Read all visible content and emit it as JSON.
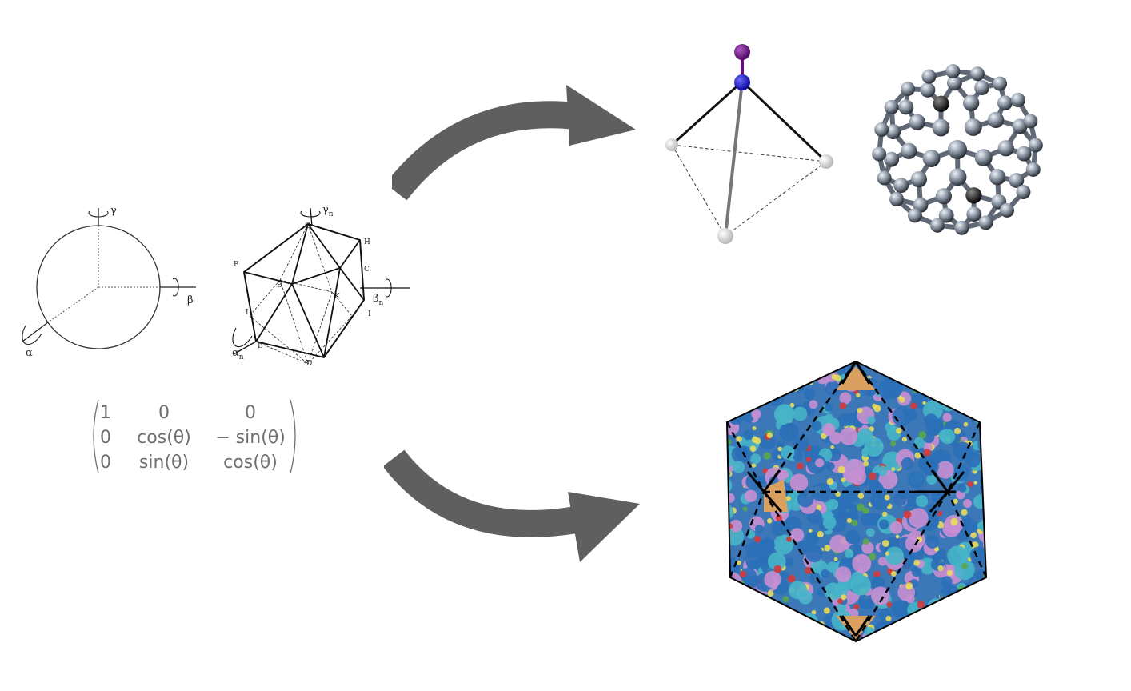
{
  "rotation_axes": {
    "sphere": {
      "alpha": "α",
      "beta": "β",
      "gamma": "γ"
    },
    "icosahedron": {
      "alpha": "α",
      "beta": "β",
      "gamma": "γ",
      "subscript": "n"
    }
  },
  "icosahedron_vertex_labels": [
    "G",
    "H",
    "C",
    "F",
    "B",
    "K",
    "L",
    "I",
    "E",
    "D"
  ],
  "rotation_matrix": {
    "rows": [
      [
        "1",
        "0",
        "0"
      ],
      [
        "0",
        "cos(θ)",
        "− sin(θ)"
      ],
      [
        "0",
        "sin(θ)",
        "cos(θ)"
      ]
    ]
  },
  "colors": {
    "arrow": "#5f5f5f",
    "atom_top": "#6a0d83",
    "atom_center": "#1515c8",
    "atom_ligand": "#e6e6e6",
    "fullerene_atom": "#8a96a4",
    "capsid_colors": [
      "#2a6fb8",
      "#47b4c8",
      "#c78fd1",
      "#e8dc5a",
      "#d33a3a",
      "#5aa84a",
      "#d9a060"
    ]
  },
  "icons": {
    "rotation": "circular-arrow-icon"
  }
}
